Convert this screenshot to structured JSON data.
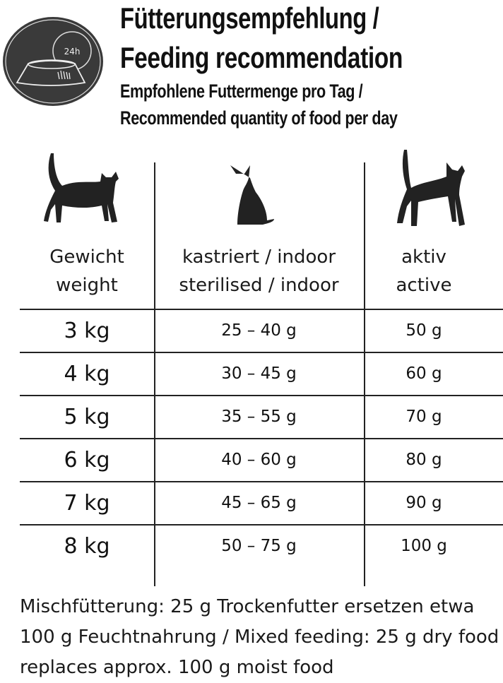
{
  "header": {
    "logo_icon": "bowl-24h-icon",
    "logo_text": "24h",
    "title_de": "Fütterungsempfehlung /",
    "title_en": "Feeding recommendation",
    "subtitle_de": "Empfohlene Futtermenge pro Tag /",
    "subtitle_en": "Recommended quantity of food per day"
  },
  "table": {
    "columns": [
      {
        "icon": "walking-cat-icon",
        "label_de": "Gewicht",
        "label_en": "weight"
      },
      {
        "icon": "sitting-cat-icon",
        "label_de": "kastriert / indoor",
        "label_en": "sterilised / indoor"
      },
      {
        "icon": "active-cat-icon",
        "label_de": "aktiv",
        "label_en": "active"
      }
    ],
    "rows": [
      {
        "weight": "3 kg",
        "indoor": "25 – 40 g",
        "active": "50 g"
      },
      {
        "weight": "4 kg",
        "indoor": "30 – 45 g",
        "active": "60 g"
      },
      {
        "weight": "5 kg",
        "indoor": "35 – 55 g",
        "active": "70 g"
      },
      {
        "weight": "6 kg",
        "indoor": "40 – 60 g",
        "active": "80 g"
      },
      {
        "weight": "7 kg",
        "indoor": "45 – 65 g",
        "active": "90 g"
      },
      {
        "weight": "8 kg",
        "indoor": "50 – 75 g",
        "active": "100 g"
      }
    ]
  },
  "footer": {
    "note": "Mischfütterung: 25 g Trockenfutter ersetzen etwa 100 g Feuchtnahrung / Mixed feeding: 25 g dry food replaces approx. 100 g moist food"
  }
}
